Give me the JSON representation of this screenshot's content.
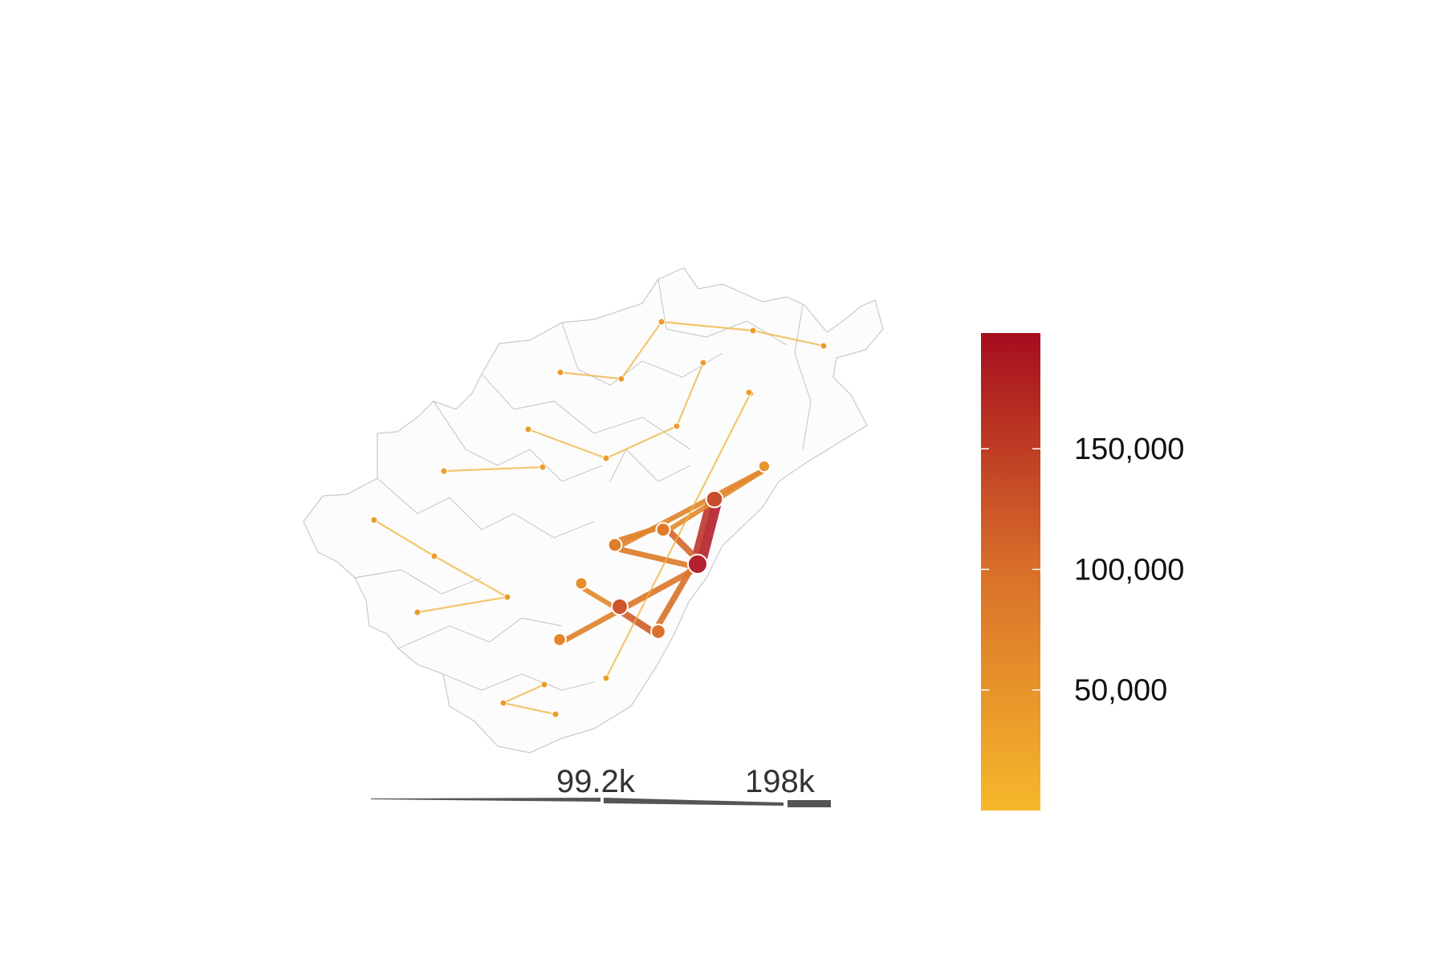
{
  "map": {
    "hubs": [
      {
        "id": "main",
        "value": 198000
      },
      {
        "id": "north-east",
        "value": 150000
      },
      {
        "id": "west-centre",
        "value": 140000
      },
      {
        "id": "centre",
        "value": 100000
      },
      {
        "id": "mid-west",
        "value": 95000
      },
      {
        "id": "south",
        "value": 110000
      },
      {
        "id": "south-west",
        "value": 80000
      },
      {
        "id": "west",
        "value": 70000
      },
      {
        "id": "coast-north",
        "value": 60000
      }
    ],
    "minor_node_value": 45000,
    "flow_colors": {
      "low": "#f6b82b",
      "mid": "#de7c2a",
      "high": "#b5202e"
    }
  },
  "color_legend": {
    "ticks": [
      {
        "value": 150000,
        "label": "150,000"
      },
      {
        "value": 100000,
        "label": "100,000"
      },
      {
        "value": 50000,
        "label": "50,000"
      }
    ],
    "range": [
      0,
      198000
    ],
    "color_low": "#f6b82b",
    "color_high": "#a50d1e"
  },
  "width_legend": {
    "ticks": [
      {
        "value": 99200,
        "label": "99.2k"
      },
      {
        "value": 198000,
        "label": "198k"
      }
    ],
    "max": 198000,
    "color": "#555555"
  }
}
